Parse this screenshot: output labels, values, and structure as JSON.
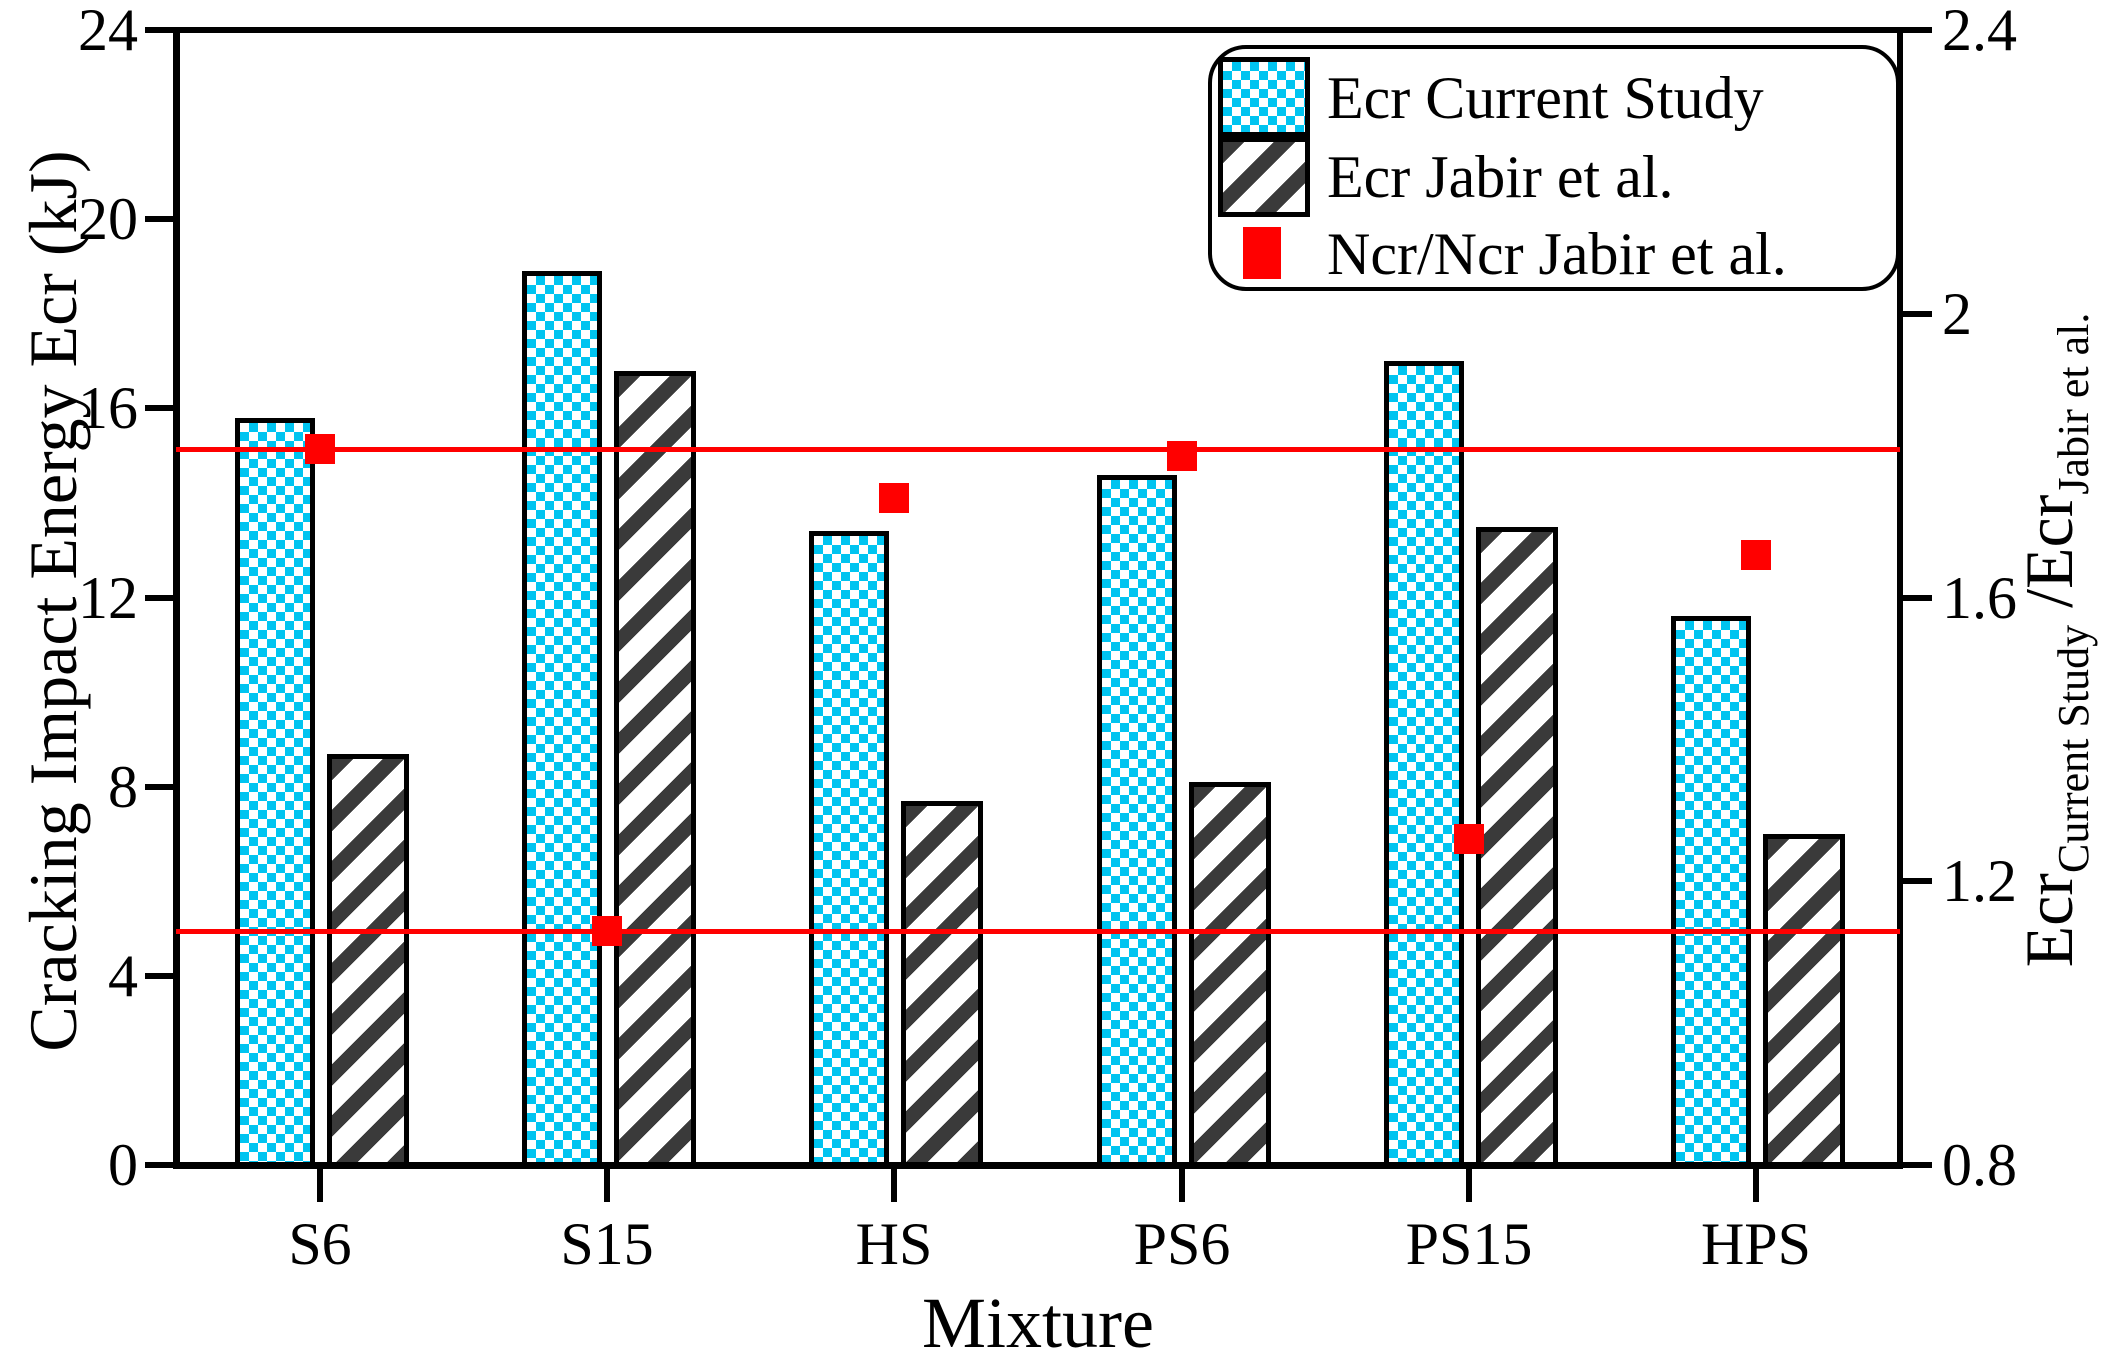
{
  "legend": {
    "items": [
      {
        "label": "Ecr Current Study",
        "swatch": "cyan-checker"
      },
      {
        "label": "Ecr Jabir et al.",
        "swatch": "dark-hatch"
      },
      {
        "label": "Ncr/Ncr Jabir et al.",
        "swatch": "red-square"
      }
    ]
  },
  "axes": {
    "left": {
      "title": "Cracking Impact Energy Ecr (kJ)",
      "ticks": [
        "0",
        "4",
        "8",
        "12",
        "16",
        "20",
        "24"
      ],
      "range": [
        0,
        24
      ]
    },
    "right": {
      "title_parts": {
        "main1": "Ecr",
        "sub1": "Current Study",
        "main2": " /Ecr",
        "sub2": "Jabir et al."
      },
      "ticks": [
        "0.8",
        "1.2",
        "1.6",
        "2",
        "2.4"
      ],
      "range": [
        0.8,
        2.4
      ]
    },
    "x": {
      "title": "Mixture",
      "categories": [
        "S6",
        "S15",
        "HS",
        "PS6",
        "PS15",
        "HPS"
      ]
    }
  },
  "chart_data": {
    "type": "bar",
    "title": "",
    "categories": [
      "S6",
      "S15",
      "HS",
      "PS6",
      "PS15",
      "HPS"
    ],
    "series": [
      {
        "name": "Ecr Current Study",
        "type": "bar",
        "axis": "left",
        "style": "cyan-checker",
        "values": [
          15.8,
          18.9,
          13.4,
          14.6,
          17.0,
          11.6
        ]
      },
      {
        "name": "Ecr Jabir et al.",
        "type": "bar",
        "axis": "left",
        "style": "dark-hatch",
        "values": [
          8.7,
          16.8,
          7.7,
          8.1,
          13.5,
          7.0
        ]
      },
      {
        "name": "Ncr/Ncr Jabir et al.",
        "type": "scatter",
        "axis": "right",
        "style": "red-square",
        "values": [
          1.81,
          1.13,
          1.74,
          1.8,
          1.26,
          1.66
        ]
      }
    ],
    "reference_lines": [
      {
        "axis": "right",
        "value": 1.81,
        "color": "#ff0000"
      },
      {
        "axis": "right",
        "value": 1.13,
        "color": "#ff0000"
      }
    ],
    "xlabel": "Mixture",
    "ylabel": "Cracking Impact Energy Ecr (kJ)",
    "ylabel_right": "Ecr Current Study /Ecr Jabir et al.",
    "yticks_left": [
      0,
      4,
      8,
      12,
      16,
      20,
      24
    ],
    "yticks_right_labels": [
      "0.8",
      "1.2",
      "1.6",
      "2",
      "2.4"
    ],
    "yticks_right": [
      0.8,
      1.2,
      1.6,
      2.0,
      2.4
    ],
    "ylim_left": [
      0,
      24
    ],
    "ylim_right": [
      0.8,
      2.4
    ],
    "grid": false,
    "legend_position": "top-right",
    "colors": {
      "series1": "#00c4f0",
      "series2": "#3a3a3a",
      "marker": "#ff0000",
      "reference_line": "#ff0000"
    }
  }
}
